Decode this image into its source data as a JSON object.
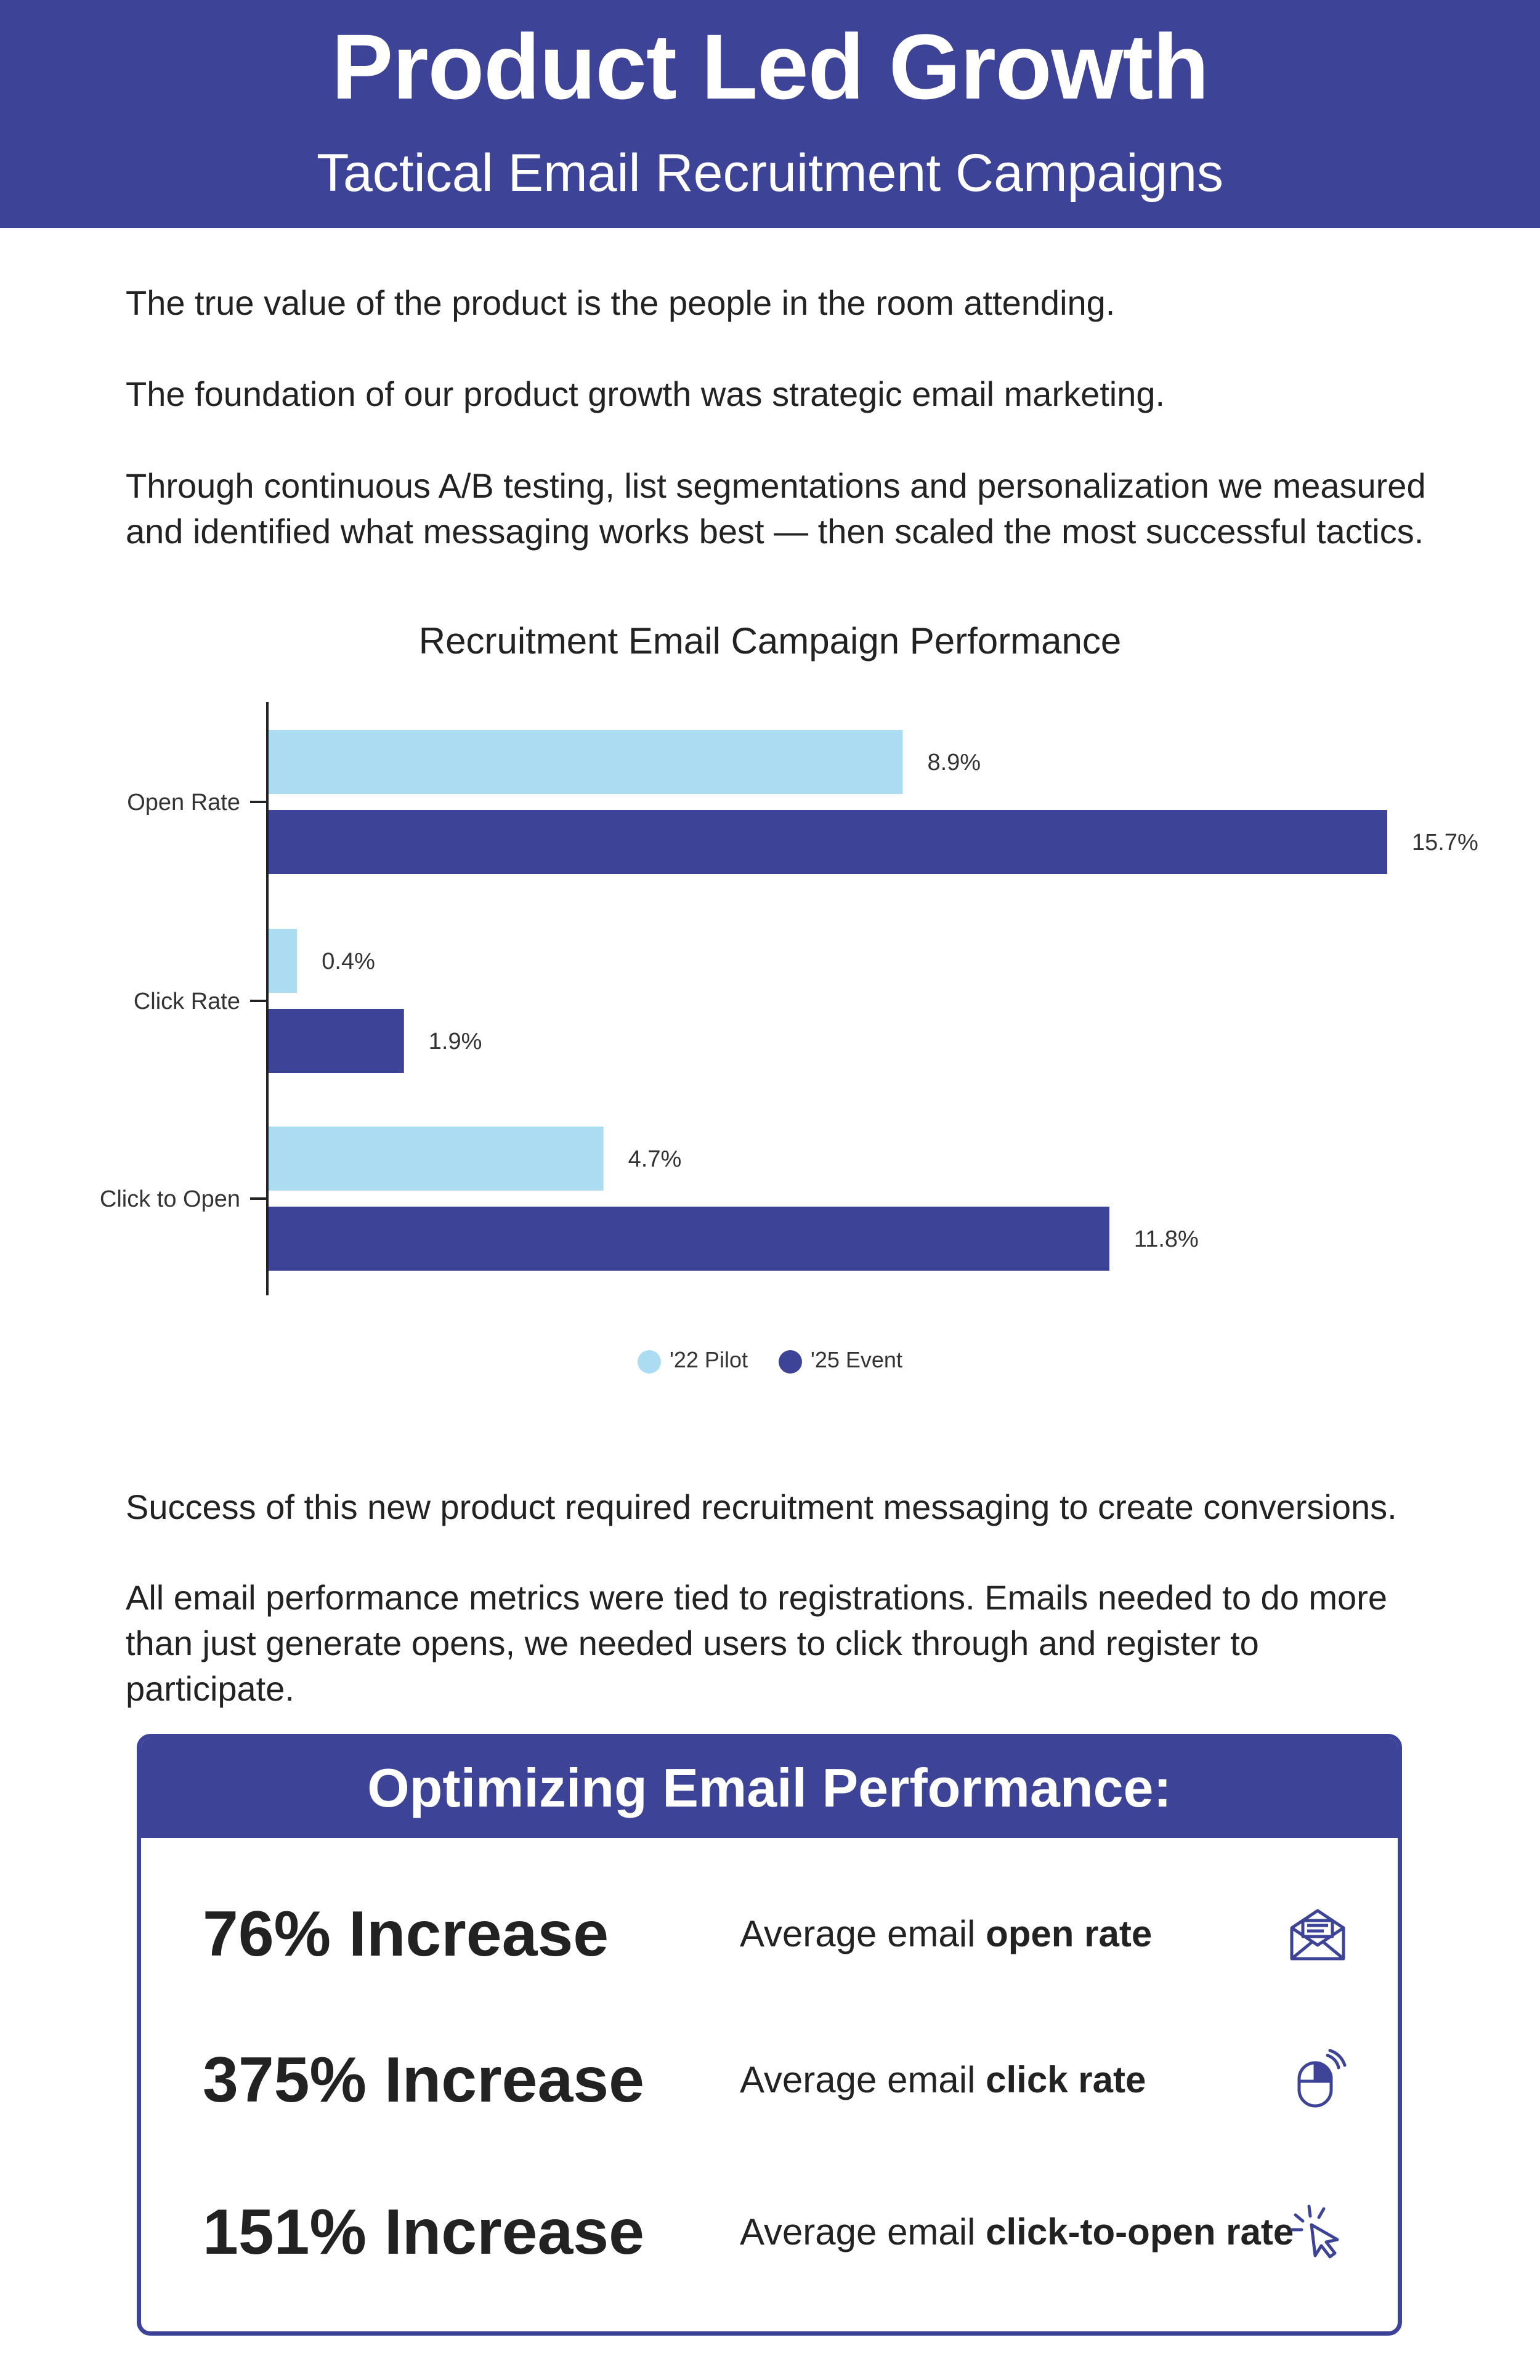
{
  "header": {
    "title": "Product Led Growth",
    "subtitle": "Tactical Email Recruitment Campaigns"
  },
  "intro": {
    "p1": "The true value of the product is the people in the room attending.",
    "p2": "The foundation of our product growth was strategic email marketing.",
    "p3": "Through continuous A/B testing, list segmentations and personalization we measured and identified what messaging works best — then scaled the most successful tactics."
  },
  "colors": {
    "brand": "#3d4397",
    "pilot": "#abdcf2",
    "event": "#3d4397"
  },
  "chart_data": {
    "type": "bar",
    "orientation": "horizontal",
    "title": "Recruitment Email Campaign Performance",
    "categories": [
      "Open Rate",
      "Click Rate",
      "Click to Open"
    ],
    "series": [
      {
        "name": "'22 Pilot",
        "values": [
          8.9,
          0.4,
          4.7
        ],
        "labels": [
          "8.9%",
          "0.4%",
          "4.7%"
        ],
        "color": "#abdcf2"
      },
      {
        "name": "'25 Event",
        "values": [
          15.7,
          1.9,
          11.8
        ],
        "labels": [
          "15.7%",
          "1.9%",
          "11.8%"
        ],
        "color": "#3d4397"
      }
    ],
    "xlim": [
      0,
      16
    ],
    "grid": false,
    "legend": "bottom-center"
  },
  "middle": {
    "p1": "Success of this new product required recruitment messaging to create conversions.",
    "p2": "All email performance metrics were tied to registrations. Emails needed to do more than just generate opens, we needed users to click through and register to participate."
  },
  "box": {
    "title": "Optimizing Email Performance:",
    "metrics": [
      {
        "value": "76% Increase",
        "desc_prefix": "Average email ",
        "desc_bold": "open rate",
        "icon": "envelope-icon"
      },
      {
        "value": "375% Increase",
        "desc_prefix": "Average email ",
        "desc_bold": "click rate",
        "icon": "mouse-icon"
      },
      {
        "value": "151% Increase",
        "desc_prefix": "Average email ",
        "desc_bold": "click-to-open rate",
        "icon": "cursor-click-icon"
      }
    ]
  }
}
